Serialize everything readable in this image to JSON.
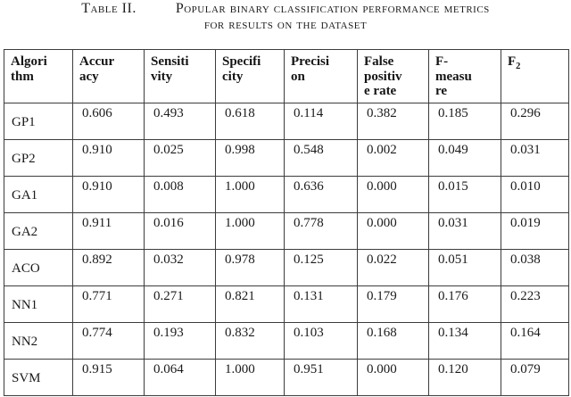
{
  "caption": {
    "label": "Table II.",
    "title_line1": "Popular binary classification performance metrics",
    "title_line2": "for results on the dataset"
  },
  "table": {
    "columns": [
      {
        "id": "algorithm",
        "label": "Algori\nthm"
      },
      {
        "id": "accuracy",
        "label": "Accur\nacy"
      },
      {
        "id": "sensitivity",
        "label": "Sensiti\nvity"
      },
      {
        "id": "specificity",
        "label": "Specifi\ncity"
      },
      {
        "id": "precision",
        "label": "Precisi\non"
      },
      {
        "id": "false-positive-rate",
        "label": "False\npositiv\ne rate"
      },
      {
        "id": "f-measure",
        "label": "F-\nmeasu\nre"
      },
      {
        "id": "f2",
        "label": "F",
        "subscript": "2"
      }
    ],
    "rows": [
      {
        "algorithm": "GP1",
        "values": [
          "0.606",
          "0.493",
          "0.618",
          "0.114",
          "0.382",
          "0.185",
          "0.296"
        ]
      },
      {
        "algorithm": "GP2",
        "values": [
          "0.910",
          "0.025",
          "0.998",
          "0.548",
          "0.002",
          "0.049",
          "0.031"
        ]
      },
      {
        "algorithm": "GA1",
        "values": [
          "0.910",
          "0.008",
          "1.000",
          "0.636",
          "0.000",
          "0.015",
          "0.010"
        ]
      },
      {
        "algorithm": "GA2",
        "values": [
          "0.911",
          "0.016",
          "1.000",
          "0.778",
          "0.000",
          "0.031",
          "0.019"
        ]
      },
      {
        "algorithm": "ACO",
        "values": [
          "0.892",
          "0.032",
          "0.978",
          "0.125",
          "0.022",
          "0.051",
          "0.038"
        ]
      },
      {
        "algorithm": "NN1",
        "values": [
          "0.771",
          "0.271",
          "0.821",
          "0.131",
          "0.179",
          "0.176",
          "0.223"
        ]
      },
      {
        "algorithm": "NN2",
        "values": [
          "0.774",
          "0.193",
          "0.832",
          "0.103",
          "0.168",
          "0.134",
          "0.164"
        ]
      },
      {
        "algorithm": "SVM",
        "values": [
          "0.915",
          "0.064",
          "1.000",
          "0.951",
          "0.000",
          "0.120",
          "0.079"
        ]
      }
    ]
  },
  "colors": {
    "text": "#1a1a1a",
    "border": "#3c3c3c",
    "background": "#ffffff"
  }
}
